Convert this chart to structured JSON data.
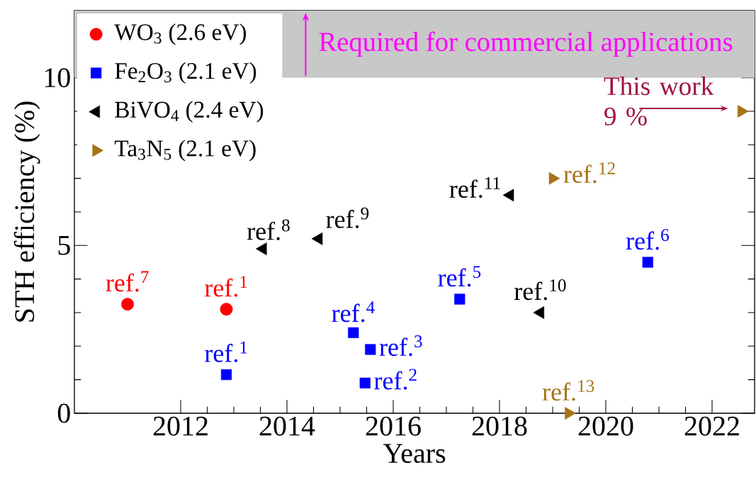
{
  "chart_data": {
    "type": "scatter",
    "xlabel": "Years",
    "ylabel": "STH efficiency (%)",
    "xlim": [
      2010,
      2022.8
    ],
    "ylim": [
      0,
      12
    ],
    "xticks": [
      2012,
      2014,
      2016,
      2018,
      2020,
      2022
    ],
    "yticks": [
      0,
      5,
      10
    ],
    "legend": "top left",
    "series": [
      {
        "name": "WO$_{3}$ (2.6 eV)",
        "color": "#ff0000",
        "marker": "circle",
        "x": [
          2011.0,
          2012.86
        ],
        "values": [
          3.25,
          3.1
        ]
      },
      {
        "name": "Fe$_{2}$O$_{3}$ (2.1 eV)",
        "color": "#0000ff",
        "marker": "square",
        "x": [
          2012.86,
          2015.25,
          2015.57,
          2015.47,
          2017.25,
          2020.79
        ],
        "values": [
          1.15,
          2.4,
          1.9,
          0.9,
          3.4,
          4.5
        ]
      },
      {
        "name": "BiVO$_{4}$ (2.4 eV)",
        "color": "#000000",
        "marker": "triangle",
        "x": [
          2013.55,
          2014.6,
          2018.77,
          2018.2
        ],
        "values": [
          4.9,
          5.2,
          3.0,
          6.5
        ]
      },
      {
        "name": "Ta$_{3}$N$_{5}$ (2.1 eV)",
        "color": "#a57417",
        "marker": "triangle",
        "x": [
          2019.0,
          2019.3,
          2022.55
        ],
        "values": [
          7.0,
          0.0,
          9.0
        ]
      }
    ],
    "bands": [
      {
        "axis": "y",
        "from": 10,
        "to": 12,
        "label": "Required for commercial applications",
        "color": "#c8c8c8"
      }
    ],
    "annotations": [
      {
        "text": "ref.$^{7}$",
        "x": 2011.0,
        "y": 3.25
      },
      {
        "text": "ref.$^{1}$",
        "x": 2012.86,
        "y": 3.1
      },
      {
        "text": "ref.$^{1}$",
        "x": 2012.86,
        "y": 1.15
      },
      {
        "text": "ref.$^{4}$",
        "x": 2015.25,
        "y": 2.4
      },
      {
        "text": "ref.$^{3}$",
        "x": 2015.57,
        "y": 1.9
      },
      {
        "text": "ref.$^{2}$",
        "x": 2015.47,
        "y": 0.9
      },
      {
        "text": "ref.$^{5}$",
        "x": 2017.25,
        "y": 3.4
      },
      {
        "text": "ref.$^{6}$",
        "x": 2020.79,
        "y": 4.5
      },
      {
        "text": "ref.$^{8}$",
        "x": 2013.55,
        "y": 4.9
      },
      {
        "text": "ref.$^{9}$",
        "x": 2014.6,
        "y": 5.2
      },
      {
        "text": "ref.$^{10}$",
        "x": 2018.77,
        "y": 3.0
      },
      {
        "text": "ref.$^{11}$",
        "x": 2018.2,
        "y": 6.5
      },
      {
        "text": "ref.$^{12}$",
        "x": 2019.0,
        "y": 7.0
      },
      {
        "text": "ref.$^{13}$",
        "x": 2019.3,
        "y": 0.0
      },
      {
        "text": "This work 9 %",
        "x": 2022.55,
        "y": 9.0
      }
    ]
  }
}
